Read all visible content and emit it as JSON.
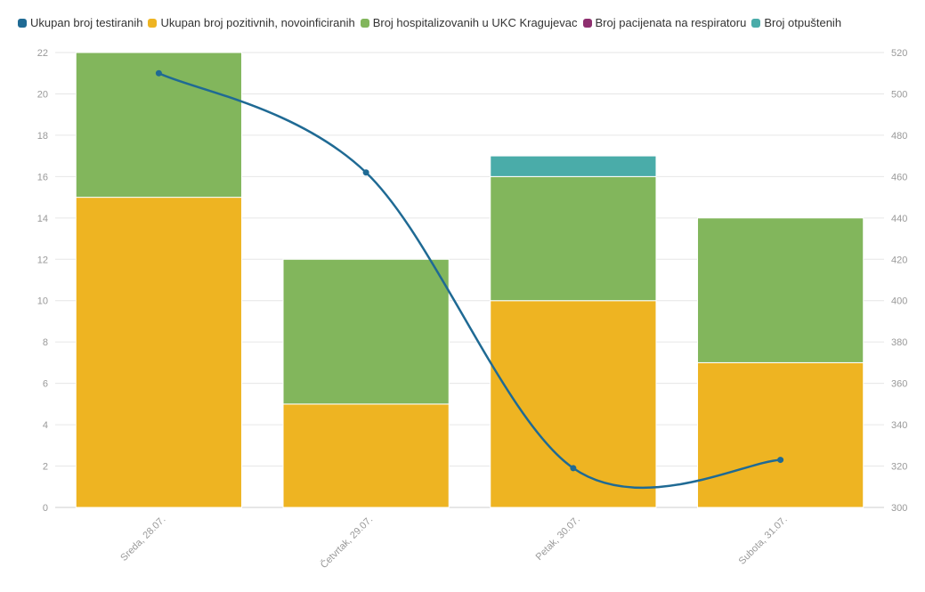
{
  "chart_data": {
    "type": "bar",
    "stacked": true,
    "categories": [
      "Sreda, 28.07.",
      "Četvrtak, 29.07.",
      "Petak, 30.07.",
      "Subota, 31.07."
    ],
    "series": [
      {
        "name": "Ukupan broj testiranih",
        "type": "line",
        "axis": "right",
        "color": "#1f6a94",
        "values": [
          510,
          462,
          319,
          323
        ]
      },
      {
        "name": "Ukupan broj pozitivnih, novoinficiranih",
        "type": "bar",
        "axis": "left",
        "color": "#eeb422",
        "values": [
          15,
          5,
          10,
          7
        ]
      },
      {
        "name": "Broj hospitalizovanih u UKC Kragujevac",
        "type": "bar",
        "axis": "left",
        "color": "#82b65c",
        "values": [
          7,
          7,
          6,
          7
        ]
      },
      {
        "name": "Broj pacijenata na respiratoru",
        "type": "bar",
        "axis": "left",
        "color": "#8e2f6f",
        "values": [
          0,
          0,
          0,
          0
        ]
      },
      {
        "name": "Broj otpuštenih",
        "type": "bar",
        "axis": "left",
        "color": "#4aaca9",
        "values": [
          0,
          0,
          1,
          0
        ]
      }
    ],
    "y_left": {
      "range": [
        0,
        22
      ],
      "ticks": [
        "0",
        "2",
        "4",
        "6",
        "8",
        "10",
        "12",
        "14",
        "16",
        "18",
        "20",
        "22"
      ]
    },
    "y_right": {
      "range": [
        300,
        520
      ],
      "ticks": [
        "300",
        "320",
        "340",
        "360",
        "380",
        "400",
        "420",
        "440",
        "460",
        "480",
        "500",
        "520"
      ]
    },
    "grid": true,
    "legend_position": "top-left"
  }
}
